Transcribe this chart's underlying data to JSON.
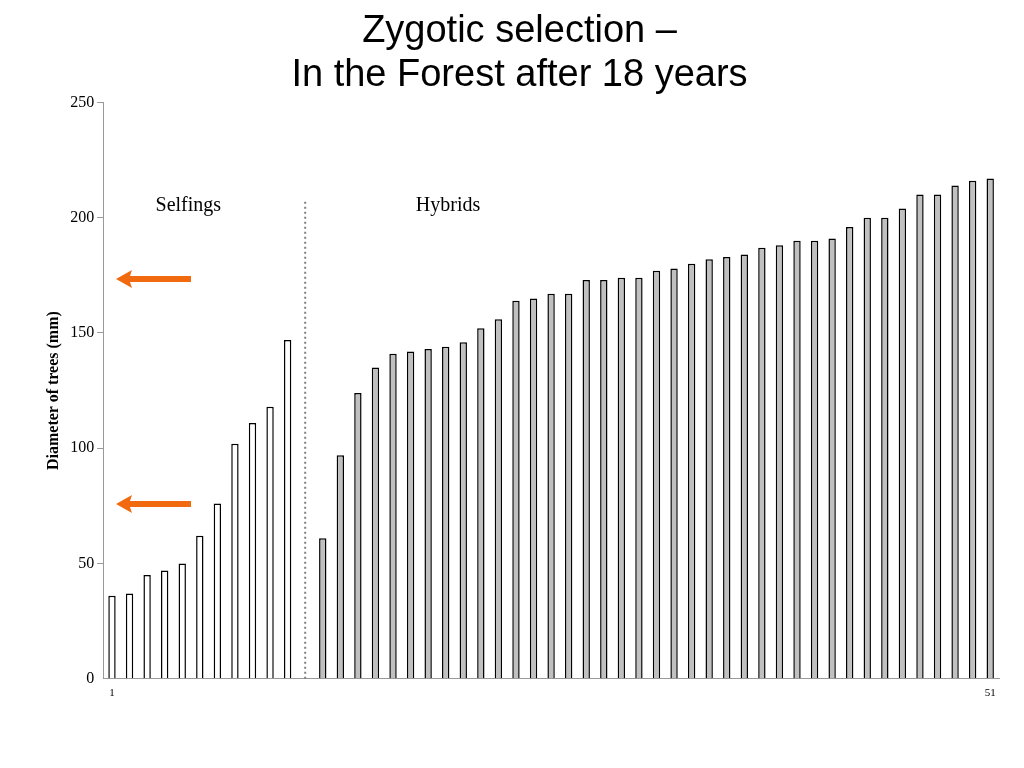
{
  "chart_data": {
    "type": "bar",
    "title": "Zygotic selection –\nIn the Forest after 18 years",
    "ylabel": "Diameter of trees (mm)",
    "x": [
      1,
      2,
      3,
      4,
      5,
      6,
      7,
      8,
      9,
      10,
      11,
      12,
      13,
      14,
      15,
      16,
      17,
      18,
      19,
      20,
      21,
      22,
      23,
      24,
      25,
      26,
      27,
      28,
      29,
      30,
      31,
      32,
      33,
      34,
      35,
      36,
      37,
      38,
      39,
      40,
      41,
      42,
      43,
      44,
      45,
      46,
      47,
      48,
      49,
      50,
      51
    ],
    "values": [
      36,
      37,
      45,
      47,
      50,
      62,
      76,
      102,
      111,
      118,
      147,
      null,
      61,
      97,
      124,
      135,
      141,
      142,
      143,
      144,
      146,
      152,
      156,
      164,
      165,
      167,
      167,
      173,
      173,
      174,
      174,
      177,
      178,
      180,
      182,
      183,
      184,
      187,
      188,
      190,
      190,
      191,
      196,
      200,
      200,
      204,
      210,
      210,
      214,
      216,
      217
    ],
    "colors": [
      "#ffffff",
      "#ffffff",
      "#ffffff",
      "#ffffff",
      "#ffffff",
      "#ffffff",
      "#ffffff",
      "#ffffff",
      "#ffffff",
      "#ffffff",
      "#ffffff",
      "#ffffff",
      "#c0c0c0",
      "#c0c0c0",
      "#c0c0c0",
      "#c0c0c0",
      "#c0c0c0",
      "#c0c0c0",
      "#c0c0c0",
      "#c0c0c0",
      "#c0c0c0",
      "#c0c0c0",
      "#c0c0c0",
      "#c0c0c0",
      "#c0c0c0",
      "#c0c0c0",
      "#c0c0c0",
      "#c0c0c0",
      "#c0c0c0",
      "#c0c0c0",
      "#c0c0c0",
      "#c0c0c0",
      "#c0c0c0",
      "#c0c0c0",
      "#c0c0c0",
      "#c0c0c0",
      "#c0c0c0",
      "#c0c0c0",
      "#c0c0c0",
      "#c0c0c0",
      "#c0c0c0",
      "#c0c0c0",
      "#c0c0c0",
      "#c0c0c0",
      "#c0c0c0",
      "#c0c0c0",
      "#c0c0c0",
      "#c0c0c0",
      "#c0c0c0",
      "#c0c0c0",
      "#c0c0c0"
    ],
    "xlim": [
      0.5,
      51.5
    ],
    "xticks": [
      1,
      51
    ],
    "ylim": [
      0,
      250
    ],
    "yticks": [
      0,
      50,
      100,
      150,
      200,
      250
    ],
    "ref_lines": [
      {
        "axis": "x",
        "value": 12,
        "line_style": "dotted",
        "color": "#808080"
      }
    ],
    "annotations": [
      "Selfings",
      "Hybrids"
    ],
    "grid": false,
    "legend": false
  }
}
